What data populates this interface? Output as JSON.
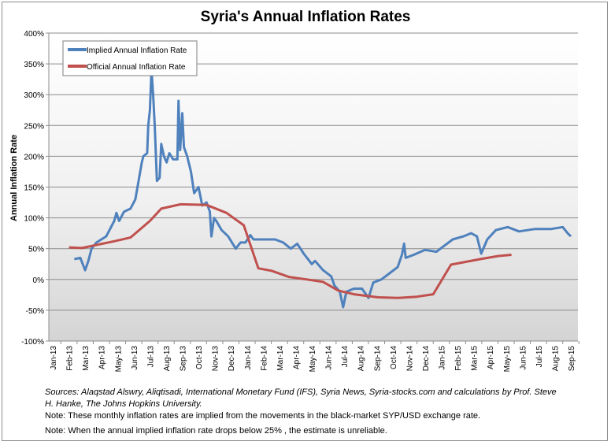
{
  "chart_data": {
    "type": "line",
    "title": "Syria's Annual Inflation Rates",
    "ylabel": "Annual Inflation Rate",
    "xlabel": "",
    "ylim": [
      -100,
      400
    ],
    "yticks": [
      "-100%",
      "-50%",
      "0%",
      "50%",
      "100%",
      "150%",
      "200%",
      "250%",
      "300%",
      "350%",
      "400%"
    ],
    "ytick_values": [
      -100,
      -50,
      0,
      50,
      100,
      150,
      200,
      250,
      300,
      350,
      400
    ],
    "xticks": [
      "Jan-13",
      "Feb-13",
      "Mar-13",
      "Apr-13",
      "May-13",
      "Jun-13",
      "Jul-13",
      "Aug-13",
      "Sep-13",
      "Oct-13",
      "Nov-13",
      "Dec-13",
      "Jan-14",
      "Feb-14",
      "Mar-14",
      "Apr-14",
      "May-14",
      "Jun-14",
      "Jul-14",
      "Aug-14",
      "Sep-14",
      "Oct-14",
      "Nov-14",
      "Dec-14",
      "Jan-15",
      "Feb-15",
      "Mar-15",
      "Apr-15",
      "May-15",
      "Jun-15",
      "Jul-15",
      "Aug-15",
      "Sep-15"
    ],
    "grid": true,
    "legend_position": "top-left",
    "series": [
      {
        "name": "Implied Annual Inflation Rate",
        "color": "#4f81bd",
        "points": [
          [
            "2013-02-11",
            33
          ],
          [
            "2013-02-22",
            35
          ],
          [
            "2013-03-01",
            15
          ],
          [
            "2013-03-07",
            30
          ],
          [
            "2013-03-13",
            50
          ],
          [
            "2013-03-22",
            60
          ],
          [
            "2013-04-01",
            65
          ],
          [
            "2013-04-10",
            70
          ],
          [
            "2013-04-25",
            95
          ],
          [
            "2013-04-29",
            108
          ],
          [
            "2013-05-04",
            95
          ],
          [
            "2013-05-13",
            110
          ],
          [
            "2013-05-25",
            115
          ],
          [
            "2013-06-04",
            130
          ],
          [
            "2013-06-10",
            160
          ],
          [
            "2013-06-16",
            190
          ],
          [
            "2013-06-19",
            200
          ],
          [
            "2013-06-26",
            205
          ],
          [
            "2013-06-28",
            250
          ],
          [
            "2013-07-01",
            275
          ],
          [
            "2013-07-04",
            340
          ],
          [
            "2013-07-07",
            300
          ],
          [
            "2013-07-10",
            250
          ],
          [
            "2013-07-14",
            160
          ],
          [
            "2013-07-19",
            165
          ],
          [
            "2013-07-22",
            220
          ],
          [
            "2013-07-27",
            200
          ],
          [
            "2013-08-02",
            190
          ],
          [
            "2013-08-07",
            205
          ],
          [
            "2013-08-14",
            195
          ],
          [
            "2013-08-22",
            195
          ],
          [
            "2013-08-24",
            290
          ],
          [
            "2013-08-27",
            210
          ],
          [
            "2013-09-01",
            270
          ],
          [
            "2013-09-04",
            215
          ],
          [
            "2013-09-10",
            200
          ],
          [
            "2013-09-17",
            175
          ],
          [
            "2013-09-23",
            140
          ],
          [
            "2013-10-01",
            150
          ],
          [
            "2013-10-08",
            120
          ],
          [
            "2013-10-16",
            125
          ],
          [
            "2013-10-22",
            110
          ],
          [
            "2013-10-25",
            70
          ],
          [
            "2013-10-30",
            100
          ],
          [
            "2013-11-04",
            95
          ],
          [
            "2013-11-14",
            80
          ],
          [
            "2013-11-26",
            70
          ],
          [
            "2013-12-10",
            50
          ],
          [
            "2013-12-19",
            60
          ],
          [
            "2013-12-28",
            60
          ],
          [
            "2014-01-07",
            72
          ],
          [
            "2014-01-13",
            65
          ],
          [
            "2014-02-10",
            65
          ],
          [
            "2014-02-23",
            65
          ],
          [
            "2014-03-08",
            60
          ],
          [
            "2014-03-22",
            50
          ],
          [
            "2014-04-04",
            58
          ],
          [
            "2014-04-16",
            42
          ],
          [
            "2014-05-01",
            25
          ],
          [
            "2014-05-07",
            30
          ],
          [
            "2014-05-22",
            15
          ],
          [
            "2014-06-07",
            5
          ],
          [
            "2014-06-13",
            -10
          ],
          [
            "2014-06-23",
            -20
          ],
          [
            "2014-06-29",
            -45
          ],
          [
            "2014-07-05",
            -20
          ],
          [
            "2014-07-19",
            -15
          ],
          [
            "2014-08-04",
            -15
          ],
          [
            "2014-08-16",
            -30
          ],
          [
            "2014-08-25",
            -5
          ],
          [
            "2014-09-10",
            0
          ],
          [
            "2014-09-25",
            10
          ],
          [
            "2014-10-10",
            20
          ],
          [
            "2014-10-18",
            40
          ],
          [
            "2014-10-22",
            58
          ],
          [
            "2014-10-25",
            35
          ],
          [
            "2014-11-10",
            40
          ],
          [
            "2014-12-01",
            48
          ],
          [
            "2014-12-22",
            45
          ],
          [
            "2015-01-07",
            55
          ],
          [
            "2015-01-22",
            65
          ],
          [
            "2015-02-12",
            70
          ],
          [
            "2015-02-26",
            75
          ],
          [
            "2015-03-07",
            70
          ],
          [
            "2015-03-15",
            42
          ],
          [
            "2015-03-26",
            65
          ],
          [
            "2015-04-12",
            80
          ],
          [
            "2015-05-04",
            85
          ],
          [
            "2015-05-25",
            78
          ],
          [
            "2015-06-25",
            82
          ],
          [
            "2015-07-25",
            82
          ],
          [
            "2015-08-16",
            85
          ],
          [
            "2015-08-25",
            75
          ],
          [
            "2015-09-01",
            70
          ]
        ]
      },
      {
        "name": "Official Annual Inflation Rate",
        "color": "#c0504d",
        "points": [
          [
            "2013-02-01",
            52
          ],
          [
            "2013-02-25",
            51
          ],
          [
            "2013-04-25",
            62
          ],
          [
            "2013-05-25",
            68
          ],
          [
            "2013-07-01",
            95
          ],
          [
            "2013-07-22",
            115
          ],
          [
            "2013-08-28",
            122
          ],
          [
            "2013-10-16",
            121
          ],
          [
            "2013-11-23",
            108
          ],
          [
            "2013-12-25",
            88
          ],
          [
            "2014-01-22",
            18
          ],
          [
            "2014-02-17",
            14
          ],
          [
            "2014-03-19",
            4
          ],
          [
            "2014-04-22",
            0
          ],
          [
            "2014-05-22",
            -4
          ],
          [
            "2014-06-20",
            -18
          ],
          [
            "2014-07-19",
            -24
          ],
          [
            "2014-09-04",
            -29
          ],
          [
            "2014-10-10",
            -30
          ],
          [
            "2014-11-16",
            -28
          ],
          [
            "2014-12-16",
            -24
          ],
          [
            "2015-01-19",
            24
          ],
          [
            "2015-03-13",
            33
          ],
          [
            "2015-04-16",
            38
          ],
          [
            "2015-05-11",
            40
          ]
        ]
      }
    ]
  },
  "notes": {
    "sources": "Sources: Alaqstad Alswry, Aliqtisadi, International Monetary Fund (IFS), Syria News, Syria-stocks.com and calculations by Prof. Steve H. Hanke, The Johns Hopkins University.",
    "note1": "Note: These monthly inflation rates are implied from the movements in the black-market SYP/USD exchange rate.",
    "note2": "Note: When the annual implied inflation rate drops below 25% , the estimate is unreliable."
  }
}
